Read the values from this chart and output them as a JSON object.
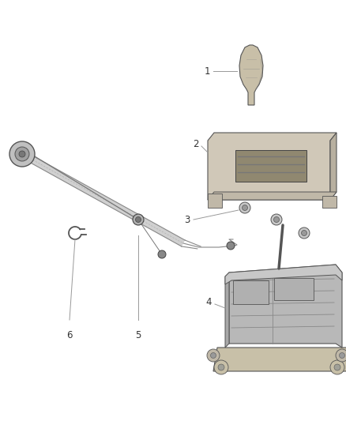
{
  "background_color": "#ffffff",
  "figure_width": 4.38,
  "figure_height": 5.33,
  "dpi": 100,
  "line_color": "#555555",
  "label_color": "#333333",
  "label_fontsize": 8.5,
  "parts_color": "#aaaaaa",
  "dark_color": "#444444",
  "mid_color": "#888888",
  "light_color": "#cccccc",
  "bezel_color": "#c8c0b0",
  "knob_color": "#c0b090"
}
